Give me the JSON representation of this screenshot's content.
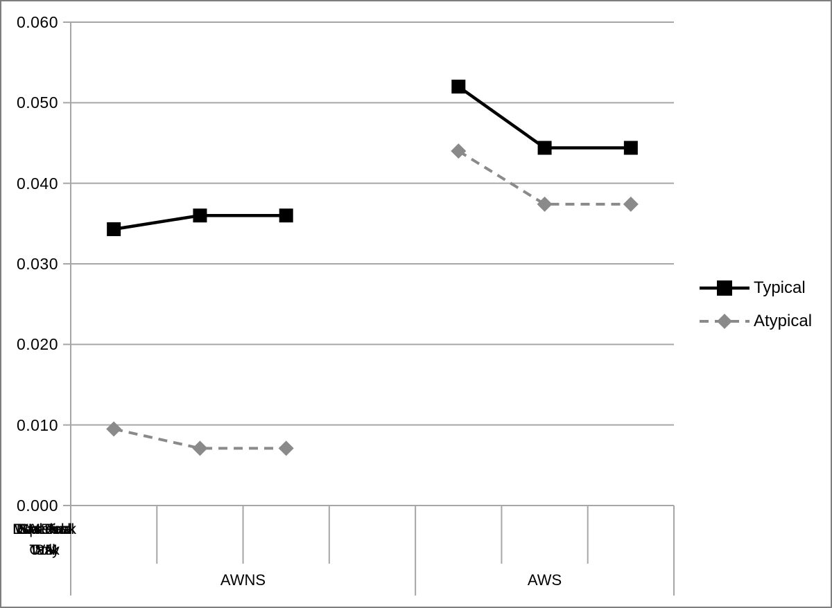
{
  "chart_data": {
    "type": "line",
    "title": "",
    "y_axis": {
      "min": 0,
      "max": 0.06,
      "tick_interval": 0.01,
      "tick_labels": [
        "0.000",
        "0.010",
        "0.020",
        "0.030",
        "0.040",
        "0.050",
        "0.060"
      ]
    },
    "x_groups": [
      {
        "label": "AWNS",
        "categories": [
          "Baseline",
          "SA Dual Task",
          "WM Dual Task"
        ]
      },
      {
        "label": "AWS",
        "categories": [
          "Speech Only",
          "Dual Task SA",
          "Dual Task WM"
        ]
      }
    ],
    "x_slot_note": "7 slots along the x-axis; slot 4 is an empty spacer between the AWNS and AWS groups",
    "series": [
      {
        "name": "Typical",
        "color": "#000000",
        "marker": "square",
        "line_style": "solid",
        "values": [
          0.0343,
          0.036,
          0.036,
          null,
          0.052,
          0.0444,
          0.0444
        ]
      },
      {
        "name": "Atypical",
        "color": "#8a8a8a",
        "marker": "diamond",
        "line_style": "dashed",
        "values": [
          0.0095,
          0.0071,
          0.0071,
          null,
          0.044,
          0.0374,
          0.0374
        ]
      }
    ],
    "legend": {
      "position": "right"
    },
    "grid": "horizontal",
    "grid_color": "#a6a6a6"
  }
}
